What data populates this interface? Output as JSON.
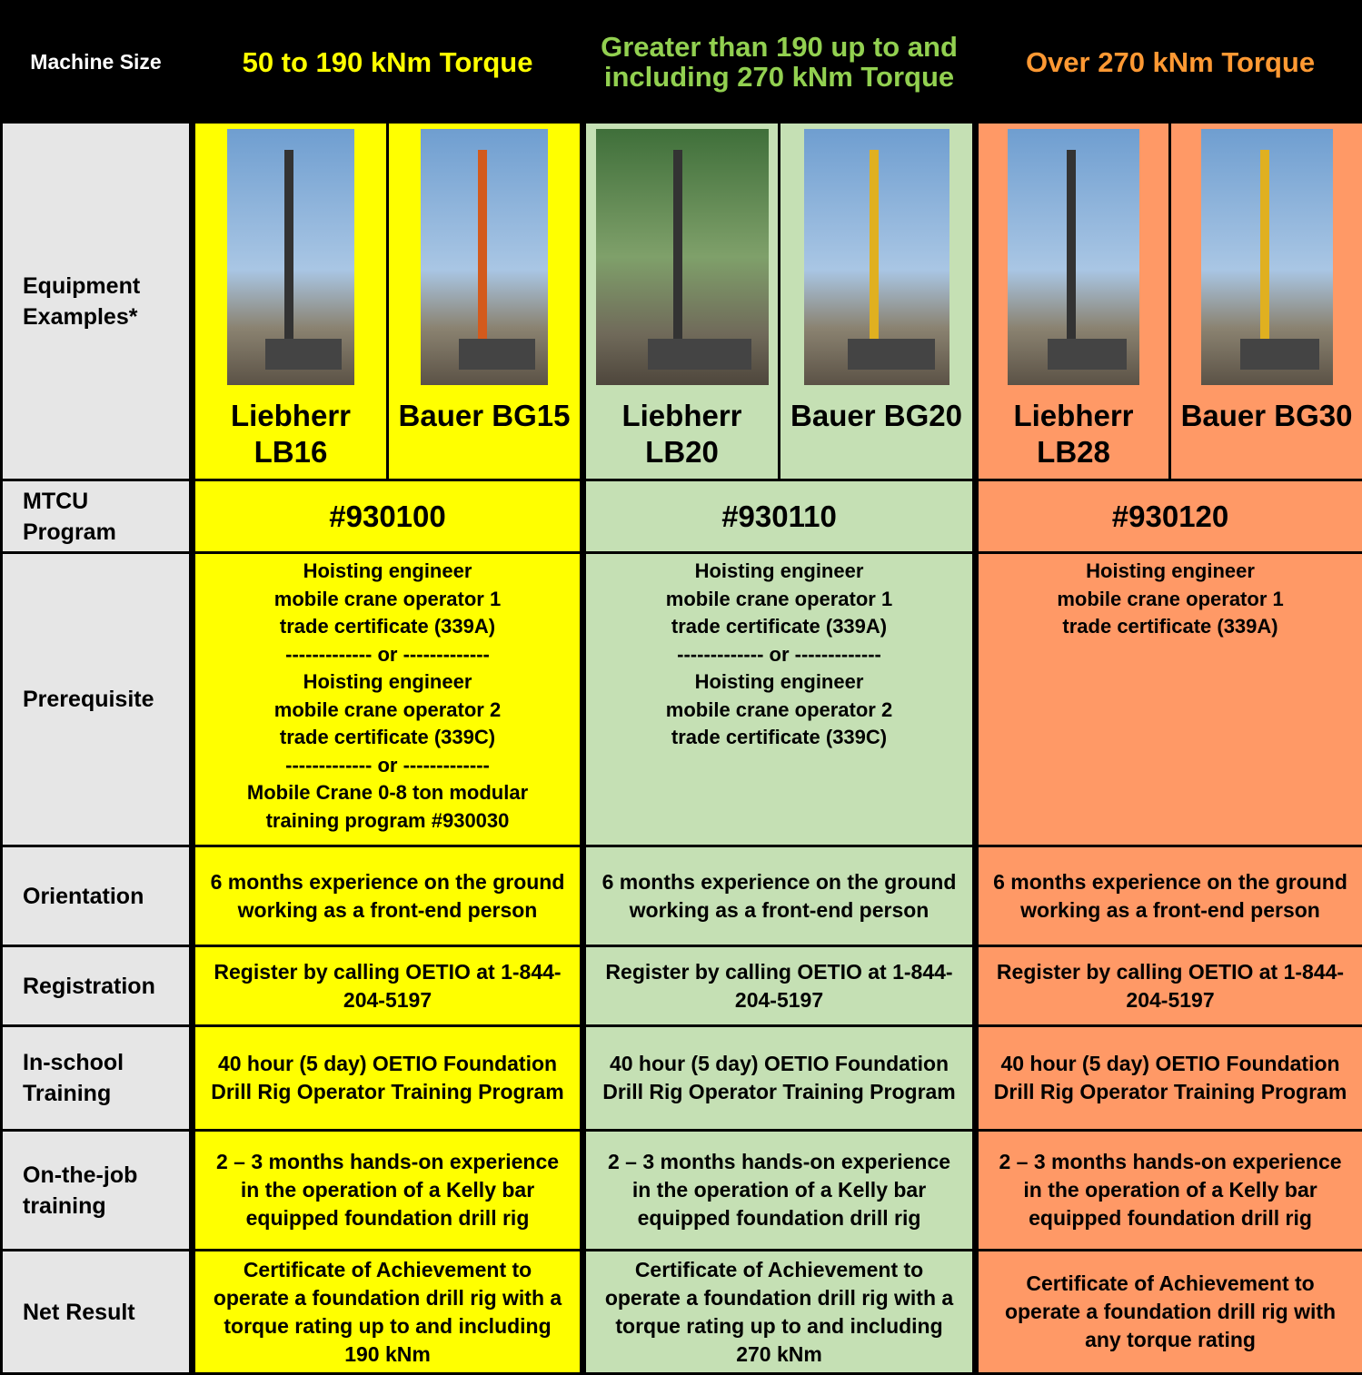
{
  "table": {
    "header": [
      "Machine Size",
      "50 to 190 kNm Torque",
      "Greater than 190 up to and including 270 kNm Torque",
      "Over 270 kNm Torque"
    ],
    "equipment": {
      "label": "Equipment Examples*",
      "machines": [
        [
          "Liebherr LB16",
          "Bauer BG15"
        ],
        [
          "Liebherr LB20",
          "Bauer BG20"
        ],
        [
          "Liebherr LB28",
          "Bauer BG30"
        ]
      ]
    },
    "mtcu": {
      "label": "MTCU Program",
      "cells": [
        "#930100",
        "#930110",
        "#930120"
      ]
    },
    "prerequisite": {
      "label": "Prerequisite",
      "cells": [
        [
          "Hoisting engineer",
          "mobile crane operator 1",
          "trade certificate (339A)",
          "------------- or -------------",
          "Hoisting engineer",
          "mobile crane operator 2",
          "trade certificate (339C)",
          "------------- or -------------",
          "Mobile Crane 0-8 ton modular",
          "training program #930030"
        ],
        [
          "Hoisting engineer",
          "mobile crane operator 1",
          "trade certificate (339A)",
          "------------- or -------------",
          "Hoisting engineer",
          "mobile crane operator 2",
          "trade certificate (339C)"
        ],
        [
          "Hoisting engineer",
          "mobile crane operator 1",
          "trade certificate (339A)"
        ]
      ]
    },
    "rows": [
      {
        "label": "Orientation",
        "cells": [
          "6 months experience on the ground working as a front-end person",
          "6 months experience on the ground working as a front-end person",
          "6 months experience on the ground working as a front-end person"
        ]
      },
      {
        "label": "Registration",
        "cells": [
          "Register by calling OETIO at 1-844-204-5197",
          "Register by calling OETIO at 1-844-204-5197",
          "Register by calling OETIO at 1-844-204-5197"
        ]
      },
      {
        "label": "In-school Training",
        "cells": [
          "40 hour (5 day) OETIO Foundation Drill Rig Operator Training Program",
          "40 hour (5 day) OETIO Foundation Drill Rig Operator Training Program",
          "40 hour (5 day) OETIO Foundation Drill Rig Operator Training Program"
        ]
      },
      {
        "label": "On-the-job training",
        "cells": [
          "2 – 3 months hands-on experience in the operation of a Kelly bar equipped foundation drill rig",
          "2 – 3 months hands-on experience in the operation of a Kelly bar equipped foundation drill rig",
          "2 – 3 months hands-on experience in the operation of a Kelly bar equipped foundation drill rig"
        ]
      },
      {
        "label": "Net Result",
        "cells": [
          "Certificate of Achievement to operate a foundation drill rig with a torque rating up to and including 190 kNm",
          "Certificate of Achievement to operate a foundation drill rig with a torque rating up to and including 270 kNm",
          "Certificate of Achievement to operate a foundation drill rig with any torque rating"
        ]
      }
    ]
  }
}
